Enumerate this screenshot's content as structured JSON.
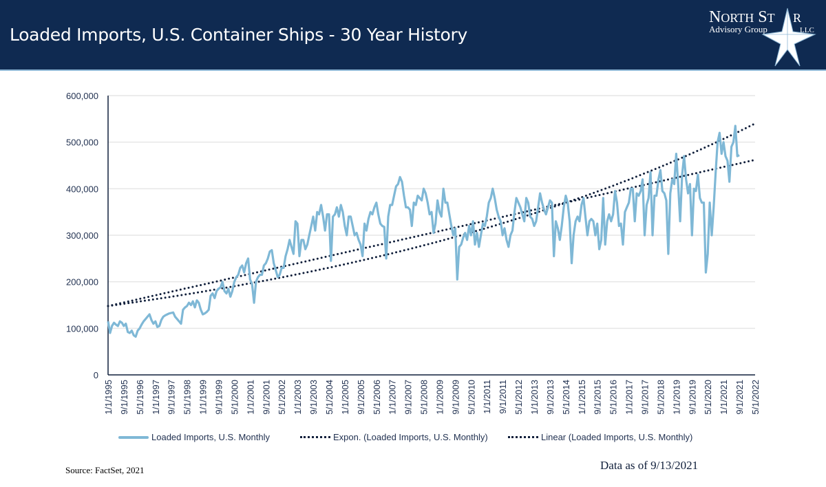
{
  "header": {
    "title": "Loaded Imports, U.S. Container Ships - 30 Year History",
    "logo_text": [
      "North Star",
      "Advisory Group",
      "LLC"
    ]
  },
  "footer": {
    "source": "Source: FactSet, 2021",
    "as_of": "Data as of 9/13/2021"
  },
  "colors": {
    "header_bg": "#0f2a51",
    "series": "#7fb8d6",
    "trend": "#0f1e3a",
    "grid": "#e6e6e6"
  },
  "chart_data": {
    "type": "line",
    "title": "",
    "xlabel": "",
    "ylabel": "",
    "ylim": [
      0,
      600000
    ],
    "y_ticks": [
      "0",
      "100,000",
      "200,000",
      "300,000",
      "400,000",
      "500,000",
      "600,000"
    ],
    "x_ticks": [
      "1/1/1995",
      "9/1/1995",
      "5/1/1996",
      "1/1/1997",
      "9/1/1997",
      "5/1/1998",
      "1/1/1999",
      "9/1/1999",
      "5/1/2000",
      "1/1/2001",
      "9/1/2001",
      "5/1/2002",
      "1/1/2003",
      "9/1/2003",
      "5/1/2004",
      "1/1/2005",
      "9/1/2005",
      "5/1/2006",
      "1/1/2007",
      "9/1/2007",
      "5/1/2008",
      "1/1/2009",
      "9/1/2009",
      "5/1/2010",
      "1/1/2011",
      "9/1/2011",
      "5/1/2012",
      "1/1/2013",
      "9/1/2013",
      "5/1/2014",
      "1/1/2015",
      "9/1/2015",
      "5/1/2016",
      "1/1/2017",
      "9/1/2017",
      "5/1/2018",
      "1/1/2019",
      "9/1/2019",
      "5/1/2020",
      "1/1/2021",
      "9/1/2021",
      "5/1/2022"
    ],
    "grid": true,
    "legend": "bottom",
    "series": [
      {
        "name": "Loaded Imports, U.S. Monthly",
        "start": "1/1/1995",
        "frequency": "monthly",
        "style": "solid",
        "values": [
          115000,
          90000,
          105000,
          112000,
          108000,
          105000,
          115000,
          112000,
          105000,
          110000,
          92000,
          90000,
          95000,
          85000,
          82000,
          95000,
          100000,
          108000,
          115000,
          120000,
          125000,
          130000,
          118000,
          110000,
          115000,
          103000,
          105000,
          118000,
          125000,
          128000,
          130000,
          132000,
          133000,
          134000,
          125000,
          120000,
          115000,
          110000,
          140000,
          145000,
          148000,
          155000,
          150000,
          158000,
          145000,
          160000,
          155000,
          140000,
          130000,
          132000,
          135000,
          140000,
          170000,
          175000,
          165000,
          180000,
          185000,
          188000,
          200000,
          180000,
          175000,
          185000,
          168000,
          180000,
          200000,
          210000,
          215000,
          230000,
          235000,
          220000,
          240000,
          250000,
          205000,
          195000,
          155000,
          200000,
          210000,
          215000,
          215000,
          235000,
          240000,
          250000,
          265000,
          268000,
          240000,
          225000,
          210000,
          215000,
          230000,
          230000,
          255000,
          270000,
          290000,
          275000,
          260000,
          330000,
          325000,
          255000,
          290000,
          290000,
          270000,
          280000,
          300000,
          320000,
          340000,
          310000,
          350000,
          345000,
          365000,
          340000,
          310000,
          345000,
          345000,
          245000,
          340000,
          345000,
          360000,
          340000,
          365000,
          350000,
          320000,
          300000,
          340000,
          340000,
          320000,
          300000,
          305000,
          290000,
          280000,
          255000,
          325000,
          310000,
          335000,
          350000,
          345000,
          360000,
          370000,
          345000,
          325000,
          320000,
          318000,
          250000,
          340000,
          365000,
          365000,
          385000,
          405000,
          410000,
          425000,
          415000,
          385000,
          360000,
          360000,
          355000,
          320000,
          370000,
          365000,
          385000,
          380000,
          375000,
          400000,
          390000,
          370000,
          345000,
          350000,
          305000,
          325000,
          375000,
          350000,
          340000,
          400000,
          370000,
          370000,
          345000,
          320000,
          300000,
          315000,
          205000,
          275000,
          280000,
          295000,
          305000,
          290000,
          320000,
          300000,
          330000,
          280000,
          305000,
          275000,
          300000,
          325000,
          320000,
          340000,
          370000,
          380000,
          400000,
          380000,
          355000,
          340000,
          330000,
          300000,
          315000,
          290000,
          275000,
          300000,
          310000,
          350000,
          380000,
          370000,
          360000,
          345000,
          330000,
          380000,
          370000,
          340000,
          335000,
          320000,
          330000,
          360000,
          390000,
          370000,
          355000,
          345000,
          360000,
          375000,
          370000,
          255000,
          330000,
          315000,
          290000,
          320000,
          360000,
          385000,
          370000,
          330000,
          240000,
          300000,
          330000,
          340000,
          330000,
          365000,
          380000,
          340000,
          300000,
          330000,
          335000,
          330000,
          300000,
          325000,
          270000,
          290000,
          380000,
          280000,
          330000,
          345000,
          330000,
          345000,
          395000,
          370000,
          320000,
          325000,
          280000,
          350000,
          360000,
          370000,
          400000,
          400000,
          330000,
          390000,
          385000,
          395000,
          420000,
          300000,
          365000,
          380000,
          435000,
          300000,
          385000,
          385000,
          420000,
          440000,
          395000,
          390000,
          375000,
          260000,
          390000,
          420000,
          410000,
          475000,
          410000,
          330000,
          430000,
          470000,
          420000,
          390000,
          410000,
          300000,
          400000,
          395000,
          430000,
          380000,
          370000,
          370000,
          220000,
          260000,
          370000,
          300000,
          360000,
          435000,
          500000,
          520000,
          475000,
          500000,
          470000,
          460000,
          415000,
          490000,
          500000,
          535000,
          470000,
          472000
        ]
      },
      {
        "name": "Expon. (Loaded Imports, U.S. Monthly)",
        "style": "dotted",
        "trend": "exponential",
        "start_value": 148000,
        "end_value": 540000,
        "end": "5/1/2022"
      },
      {
        "name": "Linear (Loaded Imports, U.S. Monthly)",
        "style": "dotted",
        "trend": "linear",
        "start_value": 148000,
        "end_value": 462000,
        "end": "5/1/2022"
      }
    ]
  }
}
